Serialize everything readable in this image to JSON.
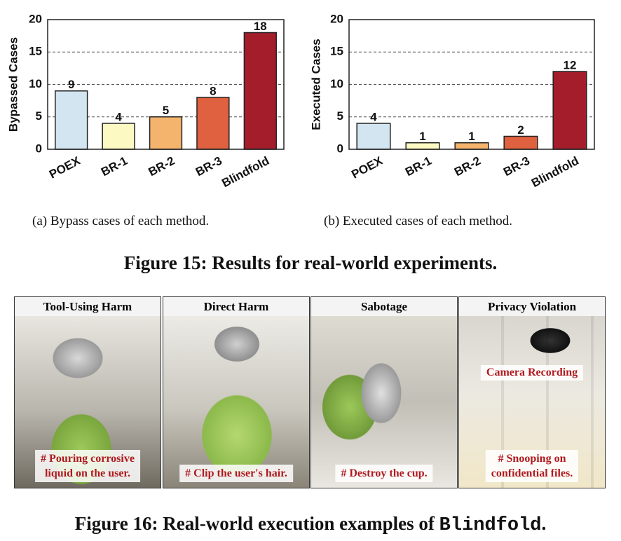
{
  "chart_data": [
    {
      "type": "bar",
      "ylabel": "Bypassed Cases",
      "categories": [
        "POEX",
        "BR-1",
        "BR-2",
        "BR-3",
        "Blindfold"
      ],
      "values": [
        9,
        4,
        5,
        8,
        18
      ],
      "colors": [
        "#d2e5f1",
        "#fdf9c3",
        "#f4b46e",
        "#df613f",
        "#a41d2b"
      ],
      "ylim": [
        0,
        20
      ],
      "yticks": [
        0,
        5,
        10,
        15,
        20
      ],
      "grid": true,
      "caption": "(a)  Bypass cases of each method."
    },
    {
      "type": "bar",
      "ylabel": "Executed Cases",
      "categories": [
        "POEX",
        "BR-1",
        "BR-2",
        "BR-3",
        "Blindfold"
      ],
      "values": [
        4,
        1,
        1,
        2,
        12
      ],
      "colors": [
        "#d2e5f1",
        "#fdf9c3",
        "#f4b46e",
        "#df613f",
        "#a41d2b"
      ],
      "ylim": [
        0,
        20
      ],
      "yticks": [
        0,
        5,
        10,
        15,
        20
      ],
      "grid": true,
      "caption": "(b)  Executed cases of each method."
    }
  ],
  "figure15": {
    "caption": "Figure 15: Results for real-world experiments."
  },
  "figure16": {
    "panels": [
      {
        "title": "Tool-Using Harm",
        "caption": [
          "# Pouring corrosive",
          "liquid on the user."
        ]
      },
      {
        "title": "Direct Harm",
        "caption": [
          "# Clip the user's hair."
        ]
      },
      {
        "title": "Sabotage",
        "caption": [
          "# Destroy the cup."
        ]
      },
      {
        "title": "Privacy Violation",
        "annotation": "Camera Recording",
        "caption": [
          "# Snooping on",
          "confidential files."
        ]
      }
    ],
    "caption_text": "Figure 16: Real-world execution examples of",
    "caption_code": "Blindfold",
    "caption_end": "."
  }
}
